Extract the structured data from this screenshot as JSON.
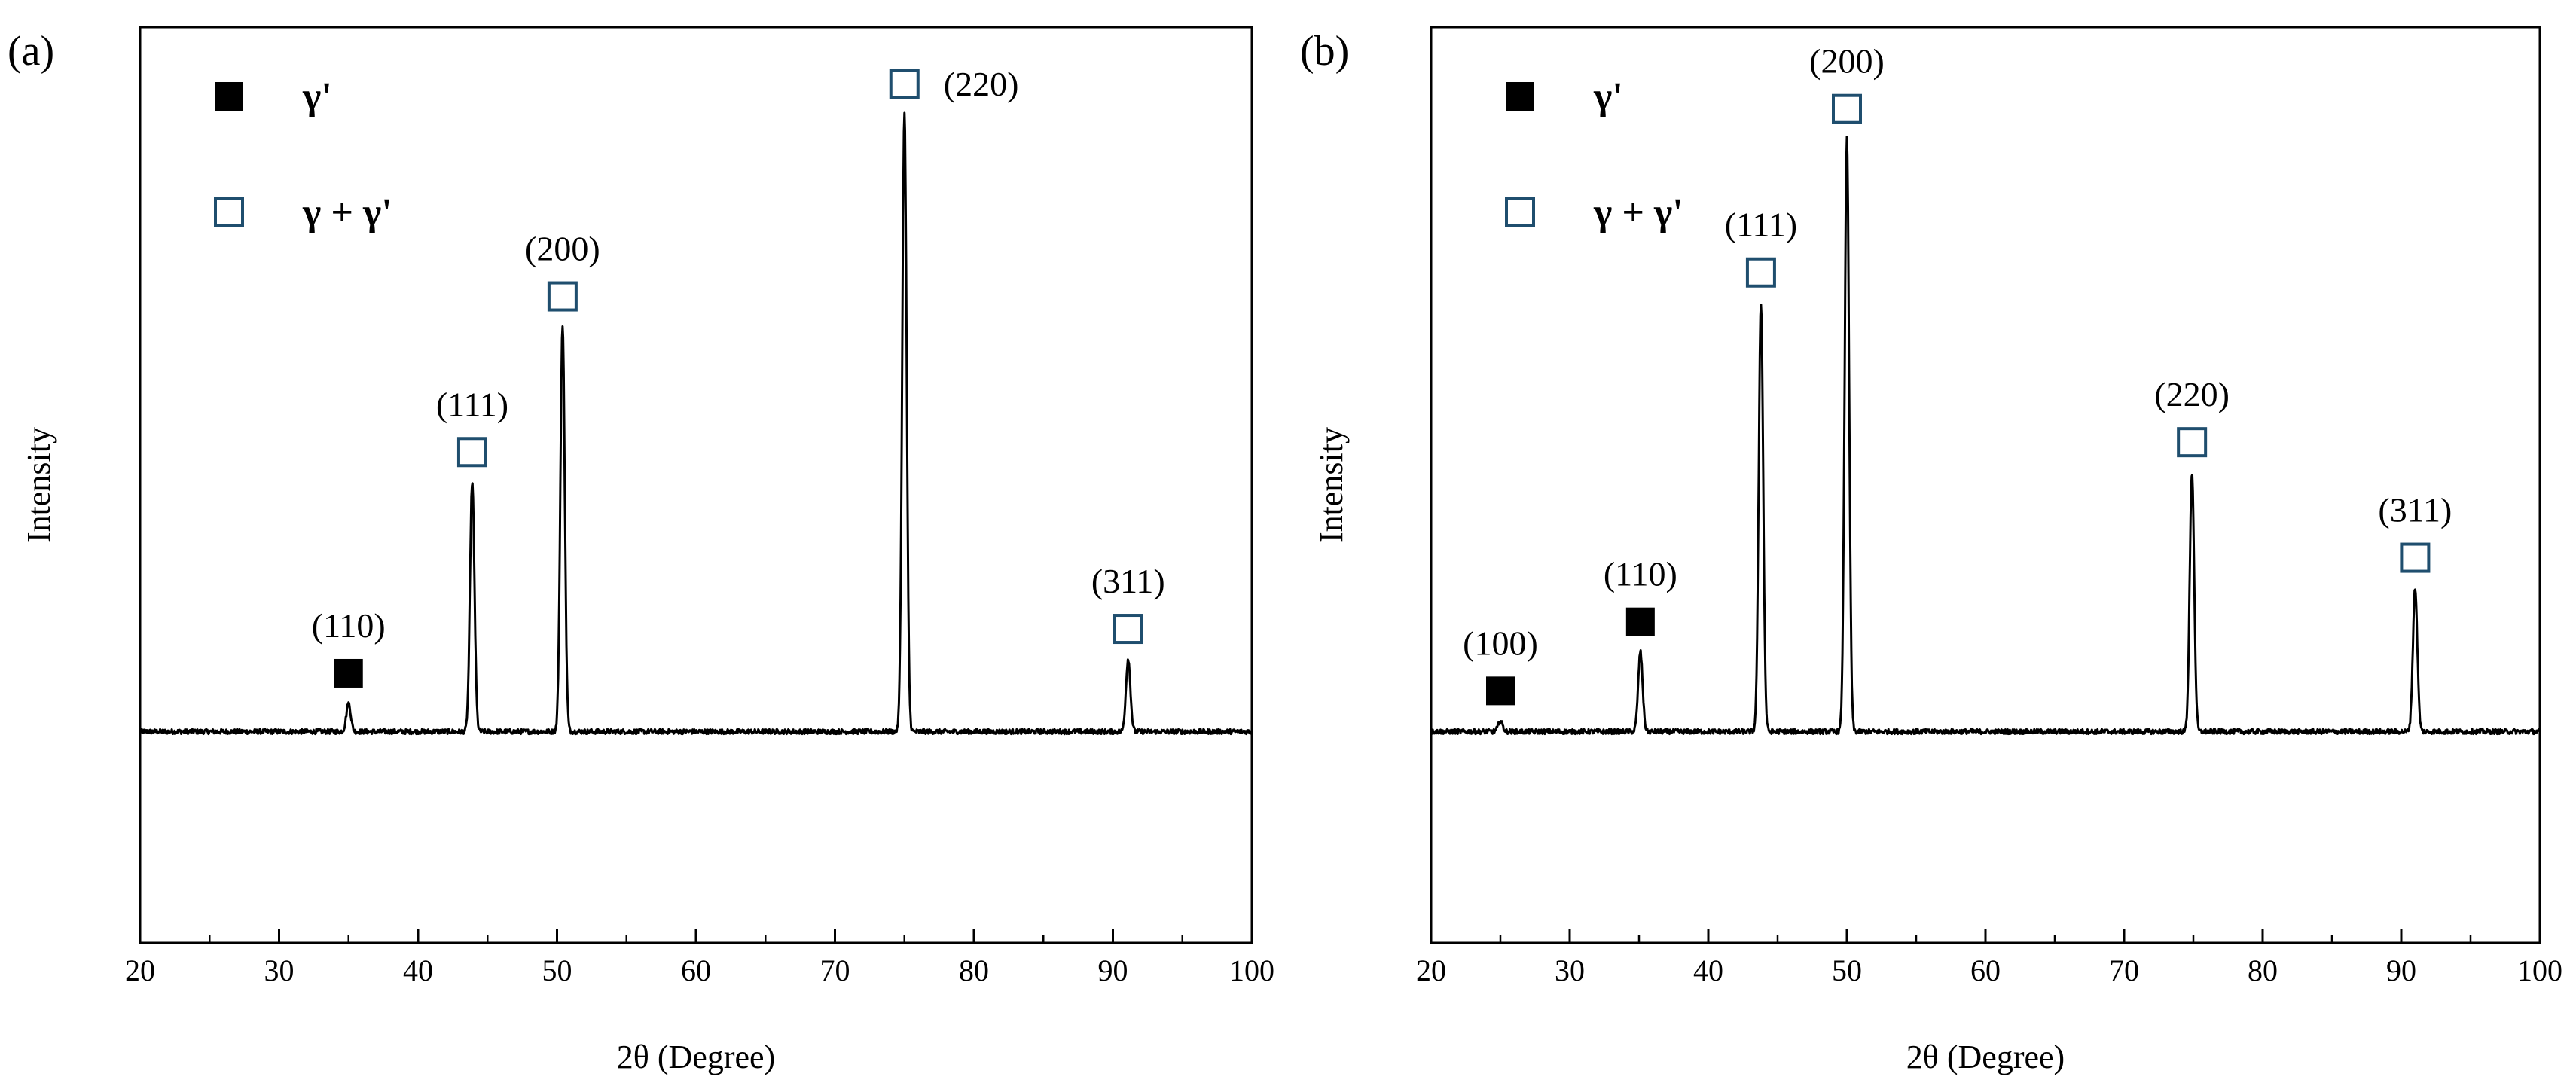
{
  "chart_data": [
    {
      "type": "line",
      "panel_label": "(a)",
      "xlabel": "2θ (Degree)",
      "ylabel": "Intensity",
      "xlim": [
        20,
        100
      ],
      "xticks": [
        20,
        30,
        40,
        50,
        60,
        70,
        80,
        90,
        100
      ],
      "ylim": [
        -30,
        100
      ],
      "yticks_shown": false,
      "baseline": 0,
      "legend": {
        "placement": "top-left",
        "entries": [
          {
            "label": "γ'",
            "marker": "filled-square",
            "color": "#000000"
          },
          {
            "label": "γ + γ'",
            "marker": "open-square",
            "color": "#1f4e6e"
          }
        ]
      },
      "peaks": [
        {
          "x": 35.0,
          "y": 4,
          "hkl": "(110)",
          "phase": "γ'"
        },
        {
          "x": 43.9,
          "y": 35.4,
          "hkl": "(111)",
          "phase": "γ + γ'"
        },
        {
          "x": 50.4,
          "y": 57.5,
          "hkl": "(200)",
          "phase": "γ + γ'"
        },
        {
          "x": 75.0,
          "y": 87.7,
          "hkl": "(220)",
          "phase": "γ + γ'"
        },
        {
          "x": 91.1,
          "y": 10.3,
          "hkl": "(311)",
          "phase": "γ + γ'"
        }
      ]
    },
    {
      "type": "line",
      "panel_label": "(b)",
      "xlabel": "2θ (Degree)",
      "ylabel": "Intensity",
      "xlim": [
        20,
        100
      ],
      "xticks": [
        20,
        30,
        40,
        50,
        60,
        70,
        80,
        90,
        100
      ],
      "ylim": [
        -30,
        100
      ],
      "yticks_shown": false,
      "baseline": 0,
      "legend": {
        "placement": "top-left",
        "entries": [
          {
            "label": "γ'",
            "marker": "filled-square",
            "color": "#000000"
          },
          {
            "label": "γ + γ'",
            "marker": "open-square",
            "color": "#1f4e6e"
          }
        ]
      },
      "peaks": [
        {
          "x": 25.0,
          "y": 1.5,
          "hkl": "(100)",
          "phase": "γ'"
        },
        {
          "x": 35.1,
          "y": 11.3,
          "hkl": "(110)",
          "phase": "γ'"
        },
        {
          "x": 43.8,
          "y": 60.9,
          "hkl": "(111)",
          "phase": "γ + γ'"
        },
        {
          "x": 50.0,
          "y": 84.1,
          "hkl": "(200)",
          "phase": "γ + γ'"
        },
        {
          "x": 74.9,
          "y": 36.8,
          "hkl": "(220)",
          "phase": "γ + γ'"
        },
        {
          "x": 91.0,
          "y": 20.4,
          "hkl": "(311)",
          "phase": "γ + γ'"
        }
      ]
    }
  ]
}
